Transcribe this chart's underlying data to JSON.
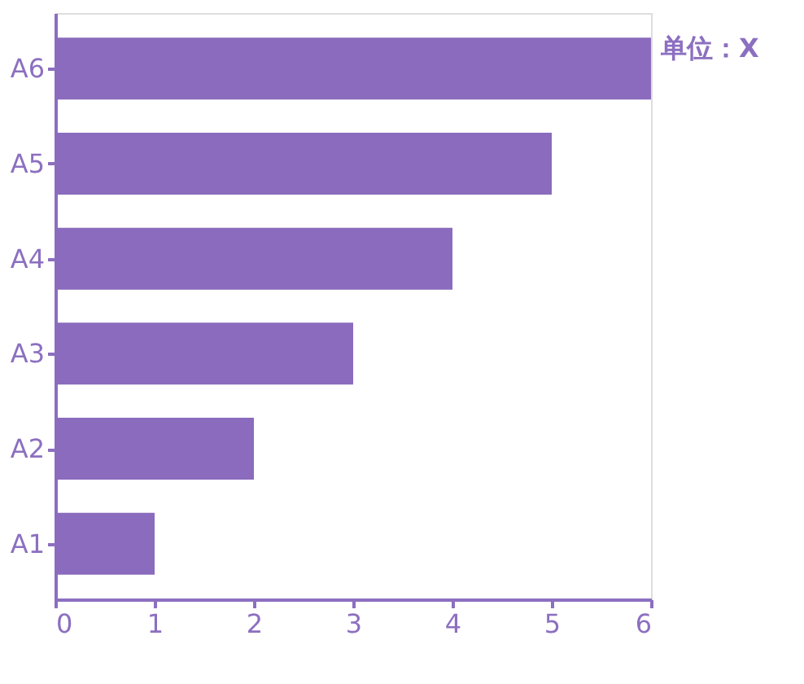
{
  "chart_data": {
    "type": "bar",
    "orientation": "horizontal",
    "categories": [
      "A6",
      "A5",
      "A4",
      "A3",
      "A2",
      "A1"
    ],
    "values": [
      6,
      5,
      4,
      3,
      2,
      1
    ],
    "color": "#8a6bbd",
    "xlim": [
      0,
      6
    ],
    "xticks": [
      0,
      1,
      2,
      3,
      4,
      5,
      6
    ],
    "grid": false,
    "annotations": [
      "单位：X"
    ]
  }
}
